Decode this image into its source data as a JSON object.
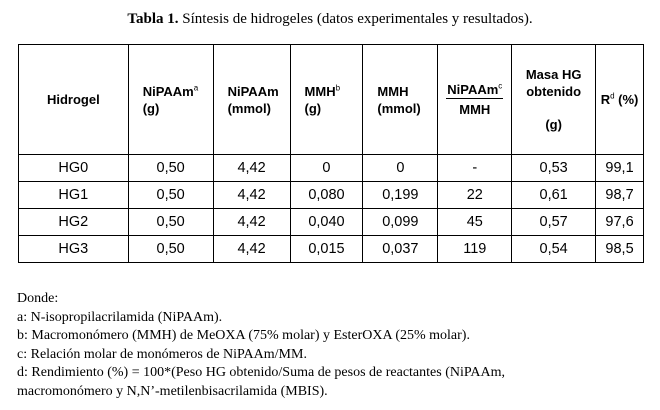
{
  "caption": {
    "label": "Tabla 1.",
    "text": "Síntesis de hidrogeles (datos experimentales y resultados)."
  },
  "table": {
    "headers": {
      "hidrogel": "Hidrogel",
      "nipaam_g": {
        "name": "NiPAAm",
        "sup": "a",
        "unit": "(g)"
      },
      "nipaam_mmol": {
        "name": "NiPAAm",
        "unit": "(mmol)"
      },
      "mmh_g": {
        "name": "MMH",
        "sup": "b",
        "unit": "(g)"
      },
      "mmh_mmol": {
        "name": "MMH",
        "unit": "(mmol)"
      },
      "ratio": {
        "num": "NiPAAm",
        "sup": "c",
        "den": "MMH"
      },
      "masa": {
        "line1": "Masa HG",
        "line2": "obtenido",
        "unit": "(g)"
      },
      "rd": {
        "name": "R",
        "sup": "d",
        "unit": "(%)"
      }
    },
    "rows": [
      [
        "HG0",
        "0,50",
        "4,42",
        "0",
        "0",
        "-",
        "0,53",
        "99,1"
      ],
      [
        "HG1",
        "0,50",
        "4,42",
        "0,080",
        "0,199",
        "22",
        "0,61",
        "98,7"
      ],
      [
        "HG2",
        "0,50",
        "4,42",
        "0,040",
        "0,099",
        "45",
        "0,57",
        "97,6"
      ],
      [
        "HG3",
        "0,50",
        "4,42",
        "0,015",
        "0,037",
        "119",
        "0,54",
        "98,5"
      ]
    ]
  },
  "notes": {
    "title": "Donde:",
    "a": "a: N-isopropilacrilamida (NiPAAm).",
    "b": "b: Macromonómero (MMH) de MeOXA (75% molar) y EsterOXA (25% molar).",
    "c": "c: Relación molar de monómeros de NiPAAm/MM.",
    "d1": "d: Rendimiento (%) = 100*(Peso HG obtenido/Suma de pesos de reactantes (NiPAAm,",
    "d2": "macromonómero y N,N’-metilenbisacrilamida (MBIS)."
  }
}
